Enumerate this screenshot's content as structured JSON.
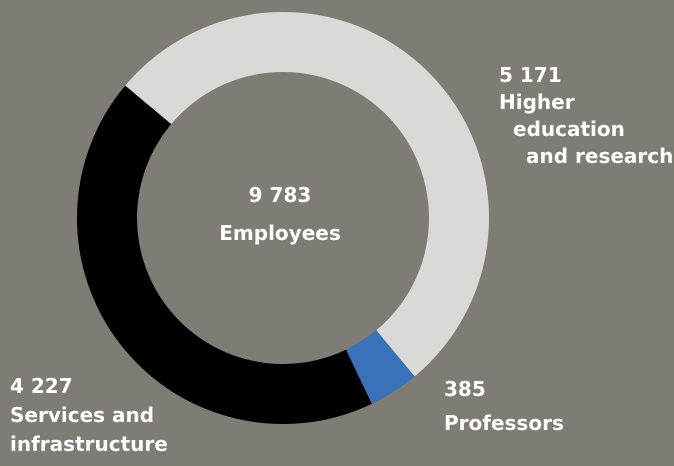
{
  "chart_data": {
    "type": "pie",
    "variant": "donut",
    "center": {
      "value": "9 783",
      "label": "Employees"
    },
    "slices": [
      {
        "name_lines": [
          "Higher",
          "education",
          "and research"
        ],
        "value_text": "5 171",
        "value": 5171,
        "color": "#d9d9d7"
      },
      {
        "name_lines": [
          "Professors"
        ],
        "value_text": "385",
        "value": 385,
        "color": "#3a72ba"
      },
      {
        "name_lines": [
          "Services and",
          "infrastructure"
        ],
        "value_text": "4 227",
        "value": 4227,
        "color": "#000000"
      }
    ],
    "start_angle_deg": -50,
    "direction": "clockwise"
  },
  "colors": {
    "background": "#7f7b75",
    "label_text": "#ffffff"
  }
}
